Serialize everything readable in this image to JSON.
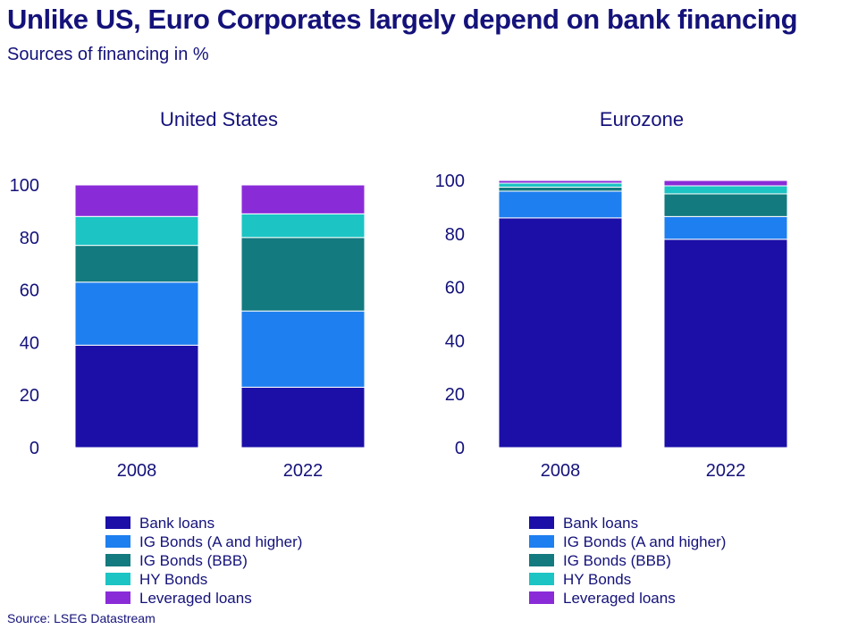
{
  "title": "Unlike US, Euro Corporates largely depend on bank financing",
  "subtitle": "Sources of financing in %",
  "source": "Source: LSEG Datastream",
  "chart_data": {
    "type": "bar",
    "stacked": true,
    "ylim": [
      0,
      100
    ],
    "yticks": [
      0,
      20,
      40,
      60,
      80,
      100
    ],
    "grid": false,
    "legend_placement": "bottom",
    "series_names": [
      "Bank loans",
      "IG Bonds (A and higher)",
      "IG Bonds (BBB)",
      "HY Bonds",
      "Leveraged loans"
    ],
    "colors": [
      "#1b0fa8",
      "#1e7ff0",
      "#137a7f",
      "#1cc4c4",
      "#8a2bd8"
    ],
    "panels": [
      {
        "title": "United States",
        "categories": [
          "2008",
          "2022"
        ],
        "series": [
          {
            "name": "Bank loans",
            "values": [
              39,
              23
            ]
          },
          {
            "name": "IG Bonds (A and higher)",
            "values": [
              24,
              29
            ]
          },
          {
            "name": "IG Bonds (BBB)",
            "values": [
              14,
              28
            ]
          },
          {
            "name": "HY Bonds",
            "values": [
              11,
              9
            ]
          },
          {
            "name": "Leveraged loans",
            "values": [
              12,
              11
            ]
          }
        ]
      },
      {
        "title": "Eurozone",
        "categories": [
          "2008",
          "2022"
        ],
        "series": [
          {
            "name": "Bank loans",
            "values": [
              86,
              78
            ]
          },
          {
            "name": "IG Bonds (A and higher)",
            "values": [
              10,
              8.5
            ]
          },
          {
            "name": "IG Bonds (BBB)",
            "values": [
              1.5,
              8.5
            ]
          },
          {
            "name": "HY Bonds",
            "values": [
              1.5,
              3
            ]
          },
          {
            "name": "Leveraged loans",
            "values": [
              1,
              2
            ]
          }
        ]
      }
    ]
  }
}
